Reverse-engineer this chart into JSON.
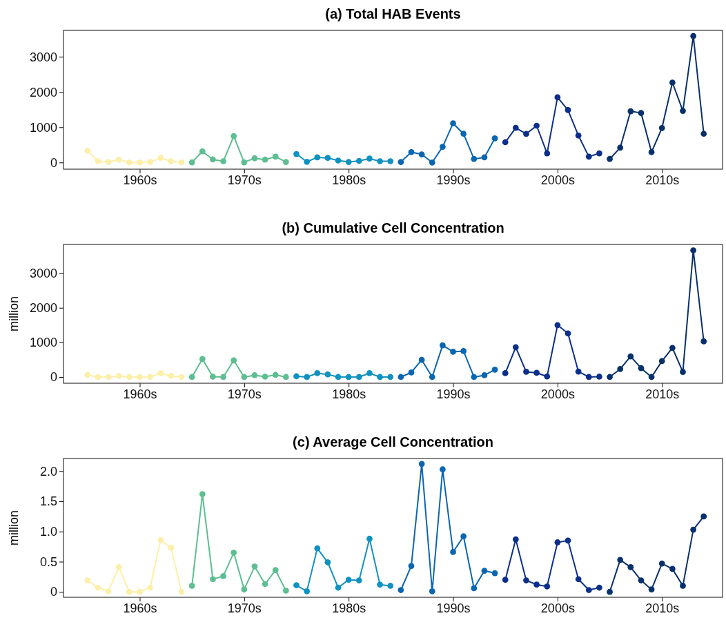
{
  "chart_data": [
    {
      "type": "line",
      "title": "(a) Total HAB Events",
      "marker": "circle",
      "grid": false,
      "xlim": [
        1952.7,
        2015.8
      ],
      "ylim": [
        -190,
        3750
      ],
      "xticks": [
        {
          "value": 1960,
          "label": "1960s"
        },
        {
          "value": 1970,
          "label": "1970s"
        },
        {
          "value": 1980,
          "label": "1980s"
        },
        {
          "value": 1990,
          "label": "1990s"
        },
        {
          "value": 2000,
          "label": "2000s"
        },
        {
          "value": 2010,
          "label": "2010s"
        }
      ],
      "yticks": [
        0,
        1000,
        2000,
        3000
      ],
      "series": [
        {
          "color": "#fcefa9",
          "x": [
            1955,
            1956,
            1957,
            1958,
            1959,
            1960,
            1961,
            1962,
            1963,
            1964
          ],
          "values": [
            330,
            35,
            15,
            80,
            5,
            0,
            15,
            130,
            35,
            5
          ]
        },
        {
          "color": "#5dbe91",
          "x": [
            1965,
            1966,
            1967,
            1968,
            1969,
            1970,
            1971,
            1972,
            1973,
            1974
          ],
          "values": [
            5,
            315,
            85,
            35,
            750,
            5,
            120,
            80,
            165,
            15
          ]
        },
        {
          "color": "#0f92c0",
          "x": [
            1975,
            1976,
            1977,
            1978,
            1979,
            1980,
            1981,
            1982,
            1983,
            1984
          ],
          "values": [
            240,
            20,
            145,
            130,
            55,
            15,
            45,
            110,
            35,
            35
          ]
        },
        {
          "color": "#0a66b0",
          "x": [
            1985,
            1986,
            1987,
            1988,
            1989,
            1990,
            1991,
            1992,
            1993,
            1994
          ],
          "values": [
            15,
            295,
            230,
            0,
            445,
            1110,
            815,
            100,
            145,
            685
          ]
        },
        {
          "color": "#0c2f8a",
          "x": [
            1995,
            1996,
            1997,
            1998,
            1999,
            2000,
            2001,
            2002,
            2003,
            2004
          ],
          "values": [
            575,
            985,
            810,
            1045,
            260,
            1850,
            1490,
            765,
            165,
            260
          ]
        },
        {
          "color": "#08306b",
          "x": [
            2005,
            2006,
            2007,
            2008,
            2009,
            2010,
            2011,
            2012,
            2013,
            2014
          ],
          "values": [
            100,
            420,
            1455,
            1405,
            295,
            980,
            2270,
            1465,
            3590,
            815
          ]
        }
      ]
    },
    {
      "type": "line",
      "title": "(b) Cumulative Cell Concentration",
      "ylabel": "million",
      "marker": "circle",
      "grid": false,
      "xlim": [
        1952.7,
        2015.8
      ],
      "ylim": [
        -180,
        3830
      ],
      "xticks": [
        {
          "value": 1960,
          "label": "1960s"
        },
        {
          "value": 1970,
          "label": "1970s"
        },
        {
          "value": 1980,
          "label": "1980s"
        },
        {
          "value": 1990,
          "label": "1990s"
        },
        {
          "value": 2000,
          "label": "2000s"
        },
        {
          "value": 2010,
          "label": "2010s"
        }
      ],
      "yticks": [
        0,
        1000,
        2000,
        3000
      ],
      "series": [
        {
          "color": "#fcefa9",
          "x": [
            1955,
            1956,
            1957,
            1958,
            1959,
            1960,
            1961,
            1962,
            1963,
            1964
          ],
          "values": [
            60,
            0,
            0,
            30,
            0,
            0,
            0,
            110,
            30,
            0
          ]
        },
        {
          "color": "#5dbe91",
          "x": [
            1965,
            1966,
            1967,
            1968,
            1969,
            1970,
            1971,
            1972,
            1973,
            1974
          ],
          "values": [
            0,
            520,
            10,
            0,
            480,
            0,
            50,
            10,
            60,
            0
          ]
        },
        {
          "color": "#0f92c0",
          "x": [
            1975,
            1976,
            1977,
            1978,
            1979,
            1980,
            1981,
            1982,
            1983,
            1984
          ],
          "values": [
            20,
            0,
            110,
            75,
            0,
            0,
            0,
            110,
            0,
            0
          ]
        },
        {
          "color": "#0a66b0",
          "x": [
            1985,
            1986,
            1987,
            1988,
            1989,
            1990,
            1991,
            1992,
            1993,
            1994
          ],
          "values": [
            0,
            130,
            495,
            0,
            915,
            730,
            750,
            0,
            50,
            210
          ]
        },
        {
          "color": "#0c2f8a",
          "x": [
            1995,
            1996,
            1997,
            1998,
            1999,
            2000,
            2001,
            2002,
            2003,
            2004
          ],
          "values": [
            110,
            860,
            150,
            120,
            15,
            1500,
            1260,
            155,
            0,
            10
          ]
        },
        {
          "color": "#08306b",
          "x": [
            2005,
            2006,
            2007,
            2008,
            2009,
            2010,
            2011,
            2012,
            2013,
            2014
          ],
          "values": [
            0,
            230,
            595,
            255,
            0,
            460,
            840,
            145,
            3660,
            1030
          ]
        }
      ]
    },
    {
      "type": "line",
      "title": "(c) Average Cell Concentration",
      "ylabel": "million",
      "marker": "circle",
      "grid": false,
      "xlim": [
        1952.7,
        2015.8
      ],
      "ylim": [
        -0.09,
        2.21
      ],
      "xticks": [
        {
          "value": 1960,
          "label": "1960s"
        },
        {
          "value": 1970,
          "label": "1970s"
        },
        {
          "value": 1980,
          "label": "1980s"
        },
        {
          "value": 1990,
          "label": "1990s"
        },
        {
          "value": 2000,
          "label": "2000s"
        },
        {
          "value": 2010,
          "label": "2010s"
        }
      ],
      "yticks": [
        {
          "value": 0,
          "label": "0"
        },
        {
          "value": 0.5,
          "label": "0.5"
        },
        {
          "value": 1,
          "label": "1.0"
        },
        {
          "value": 1.5,
          "label": "1.5"
        },
        {
          "value": 2,
          "label": "2.0"
        }
      ],
      "series": [
        {
          "color": "#fcefa9",
          "x": [
            1955,
            1956,
            1957,
            1958,
            1959,
            1960,
            1961,
            1962,
            1963,
            1964
          ],
          "values": [
            0.19,
            0.07,
            0.01,
            0.41,
            0,
            0,
            0.07,
            0.86,
            0.73,
            0
          ]
        },
        {
          "color": "#5dbe91",
          "x": [
            1965,
            1966,
            1967,
            1968,
            1969,
            1970,
            1971,
            1972,
            1973,
            1974
          ],
          "values": [
            0.1,
            1.62,
            0.21,
            0.26,
            0.65,
            0.04,
            0.42,
            0.13,
            0.36,
            0.02
          ]
        },
        {
          "color": "#0f92c0",
          "x": [
            1975,
            1976,
            1977,
            1978,
            1979,
            1980,
            1981,
            1982,
            1983,
            1984
          ],
          "values": [
            0.11,
            0.01,
            0.72,
            0.49,
            0.07,
            0.2,
            0.19,
            0.88,
            0.12,
            0.1
          ]
        },
        {
          "color": "#0a66b0",
          "x": [
            1985,
            1986,
            1987,
            1988,
            1989,
            1990,
            1991,
            1992,
            1993,
            1994
          ],
          "values": [
            0.03,
            0.43,
            2.12,
            0.01,
            2.03,
            0.66,
            0.92,
            0.06,
            0.35,
            0.31
          ]
        },
        {
          "color": "#0c2f8a",
          "x": [
            1995,
            1996,
            1997,
            1998,
            1999,
            2000,
            2001,
            2002,
            2003,
            2004
          ],
          "values": [
            0.2,
            0.87,
            0.19,
            0.12,
            0.09,
            0.82,
            0.85,
            0.21,
            0.03,
            0.07
          ]
        },
        {
          "color": "#08306b",
          "x": [
            2005,
            2006,
            2007,
            2008,
            2009,
            2010,
            2011,
            2012,
            2013,
            2014
          ],
          "values": [
            0,
            0.53,
            0.41,
            0.19,
            0.04,
            0.47,
            0.38,
            0.1,
            1.03,
            1.25
          ]
        }
      ]
    }
  ]
}
